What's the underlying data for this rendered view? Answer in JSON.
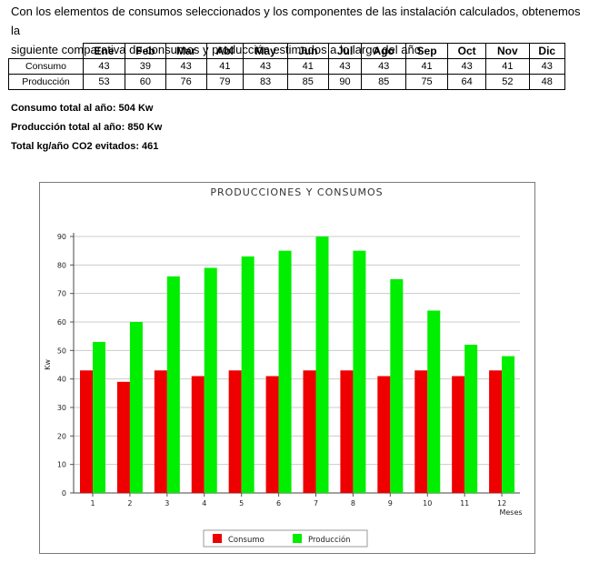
{
  "intro": {
    "line1": "Con los elementos de consumos seleccionados y los componentes de las instalación calculados, obtenemos la",
    "line2": "siguiente comparativa de consumos y producción estimados a lo largo del año"
  },
  "table": {
    "months": [
      "Ene",
      "Feb",
      "Mar",
      "Abl",
      "May",
      "Jun",
      "Jul",
      "Ago",
      "Sep",
      "Oct",
      "Nov",
      "Dic"
    ],
    "rows": [
      {
        "label": "Consumo",
        "values": [
          "43",
          "39",
          "43",
          "41",
          "43",
          "41",
          "43",
          "43",
          "41",
          "43",
          "41",
          "43"
        ]
      },
      {
        "label": "Producción",
        "values": [
          "53",
          "60",
          "76",
          "79",
          "83",
          "85",
          "90",
          "85",
          "75",
          "64",
          "52",
          "48"
        ]
      }
    ]
  },
  "totals": {
    "consumo": "Consumo total al año: 504 Kw",
    "produccion": "Producción total al año: 850 Kw",
    "co2": "Total kg/año CO2 evitados: 461"
  },
  "chart_data": {
    "type": "bar",
    "title": "PRODUCCIONES Y CONSUMOS",
    "xlabel": "Meses",
    "ylabel": "Kw",
    "categories": [
      "1",
      "2",
      "3",
      "4",
      "5",
      "6",
      "7",
      "8",
      "9",
      "10",
      "11",
      "12"
    ],
    "ylim": [
      0,
      90
    ],
    "yticks": [
      0,
      10,
      20,
      30,
      40,
      50,
      60,
      70,
      80,
      90
    ],
    "grid": true,
    "legend_position": "bottom-center",
    "series": [
      {
        "name": "Consumo",
        "color": "#ee0000",
        "values": [
          43,
          39,
          43,
          41,
          43,
          41,
          43,
          43,
          41,
          43,
          41,
          43
        ]
      },
      {
        "name": "Producción",
        "color": "#00ee00",
        "values": [
          53,
          60,
          76,
          79,
          83,
          85,
          90,
          85,
          75,
          64,
          52,
          48
        ]
      }
    ]
  }
}
